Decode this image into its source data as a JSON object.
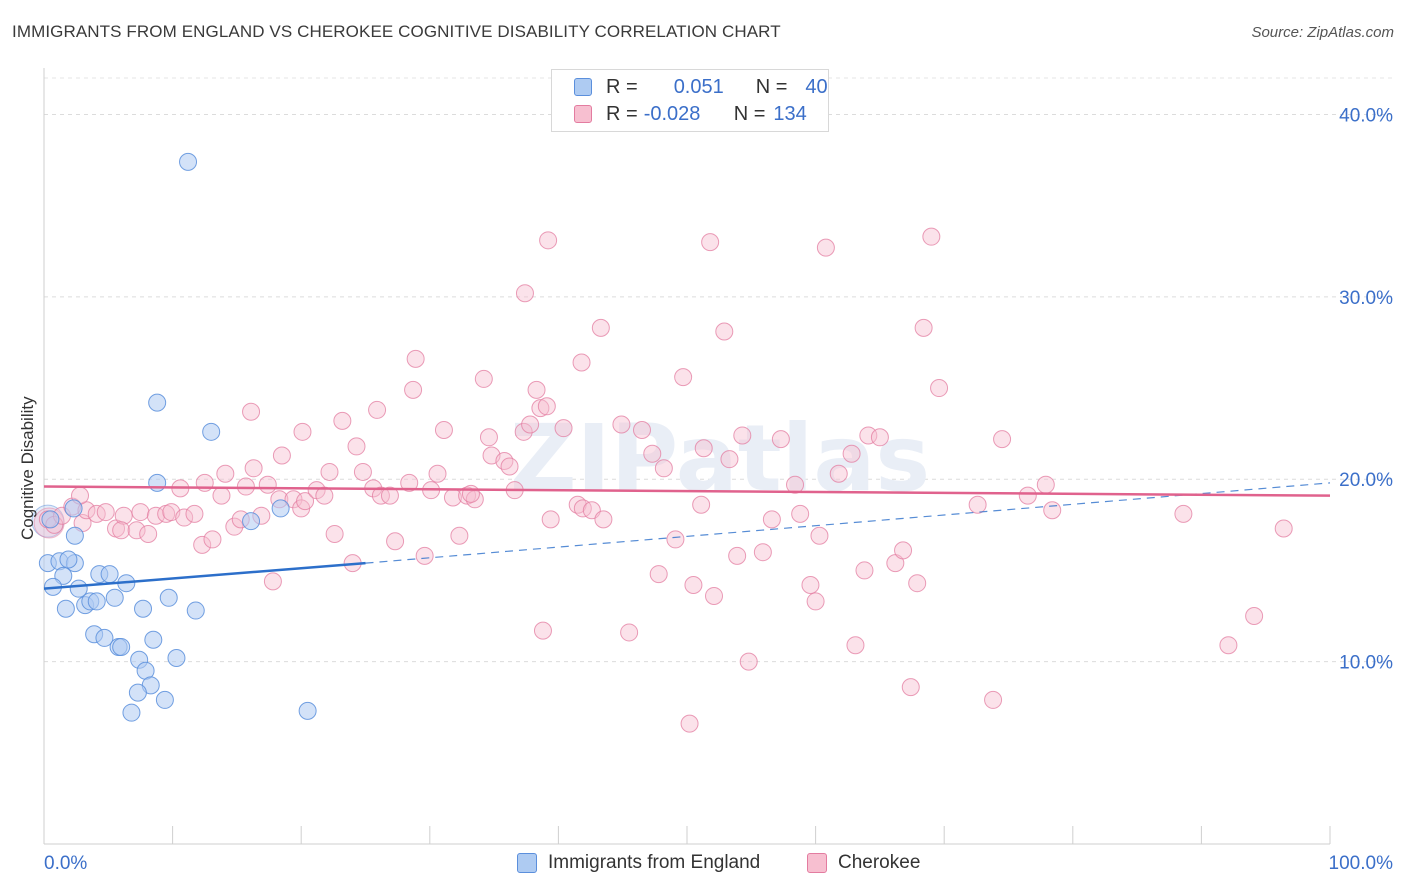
{
  "title": "IMMIGRANTS FROM ENGLAND VS CHEROKEE COGNITIVE DISABILITY CORRELATION CHART",
  "source": "Source: ZipAtlas.com",
  "watermark": "ZIPatlas",
  "legend": {
    "rows": [
      {
        "r_label": "R =",
        "r_value": "0.051",
        "n_label": "N =",
        "n_value": "40"
      },
      {
        "r_label": "R =",
        "r_value": "-0.028",
        "n_label": "N =",
        "n_value": "134"
      }
    ]
  },
  "bottom_legend": {
    "england": "Immigrants from England",
    "cherokee": "Cherokee"
  },
  "colors": {
    "england_fill": "#aecbf2",
    "england_stroke": "#5b8fdc",
    "england_line": "#2c6fca",
    "cherokee_fill": "#f7bfd0",
    "cherokee_stroke": "#e37ca0",
    "cherokee_line": "#e0628d",
    "axis_text": "#3b6fc9"
  },
  "chart_data": {
    "type": "scatter",
    "title": "IMMIGRANTS FROM ENGLAND VS CHEROKEE COGNITIVE DISABILITY CORRELATION CHART",
    "xlabel": "",
    "ylabel": "Cognitive Disability",
    "xlim": [
      0,
      100
    ],
    "ylim": [
      0,
      42
    ],
    "x_tick_labels": [
      "0.0%",
      "100.0%"
    ],
    "y_ticks": [
      10,
      20,
      30,
      40
    ],
    "y_tick_labels": [
      "10.0%",
      "20.0%",
      "30.0%",
      "40.0%"
    ],
    "grid": true,
    "series": [
      {
        "name": "Immigrants from England",
        "r": 0.051,
        "n": 40,
        "trend": {
          "x0": 0,
          "y0": 14.0,
          "x1": 25,
          "y1": 15.4,
          "dash_to_x": 100,
          "dash_to_y": 19.8
        },
        "points": [
          [
            11.2,
            37.4
          ],
          [
            0.5,
            17.8
          ],
          [
            2.3,
            18.4
          ],
          [
            8.8,
            19.8
          ],
          [
            13,
            22.6
          ],
          [
            8.8,
            24.2
          ],
          [
            0.3,
            15.4
          ],
          [
            1.2,
            15.5
          ],
          [
            2.4,
            15.4
          ],
          [
            1.9,
            15.6
          ],
          [
            1.5,
            14.7
          ],
          [
            0.7,
            14.1
          ],
          [
            2.7,
            14.0
          ],
          [
            4.3,
            14.8
          ],
          [
            5.1,
            14.8
          ],
          [
            6.4,
            14.3
          ],
          [
            3.2,
            13.1
          ],
          [
            3.6,
            13.3
          ],
          [
            4.1,
            13.3
          ],
          [
            5.5,
            13.5
          ],
          [
            9.7,
            13.5
          ],
          [
            1.7,
            12.9
          ],
          [
            7.7,
            12.9
          ],
          [
            11.8,
            12.8
          ],
          [
            3.9,
            11.5
          ],
          [
            4.7,
            11.3
          ],
          [
            5.8,
            10.8
          ],
          [
            8.5,
            11.2
          ],
          [
            6.0,
            10.8
          ],
          [
            7.4,
            10.1
          ],
          [
            10.3,
            10.2
          ],
          [
            7.9,
            9.5
          ],
          [
            8.3,
            8.7
          ],
          [
            7.3,
            8.3
          ],
          [
            9.4,
            7.9
          ],
          [
            6.8,
            7.2
          ],
          [
            20.5,
            7.3
          ],
          [
            2.4,
            16.9
          ],
          [
            18.4,
            18.4
          ],
          [
            16.1,
            17.7
          ]
        ]
      },
      {
        "name": "Cherokee",
        "r": -0.028,
        "n": 134,
        "trend": {
          "x0": 0,
          "y0": 19.6,
          "x1": 100,
          "y1": 19.1
        },
        "points": [
          [
            0.3,
            17.8
          ],
          [
            0.8,
            17.5
          ],
          [
            1.4,
            18.0
          ],
          [
            2.2,
            18.5
          ],
          [
            3.0,
            17.6
          ],
          [
            3.3,
            18.3
          ],
          [
            2.8,
            19.1
          ],
          [
            4.1,
            18.1
          ],
          [
            4.8,
            18.2
          ],
          [
            5.6,
            17.3
          ],
          [
            6.2,
            18.0
          ],
          [
            6.0,
            17.2
          ],
          [
            7.2,
            17.2
          ],
          [
            7.5,
            18.2
          ],
          [
            8.1,
            17.0
          ],
          [
            8.7,
            18.0
          ],
          [
            9.5,
            18.1
          ],
          [
            9.9,
            18.2
          ],
          [
            10.6,
            19.5
          ],
          [
            10.9,
            17.9
          ],
          [
            11.7,
            18.1
          ],
          [
            12.3,
            16.4
          ],
          [
            12.5,
            19.8
          ],
          [
            13.1,
            16.7
          ],
          [
            13.8,
            19.1
          ],
          [
            14.1,
            20.3
          ],
          [
            14.8,
            17.4
          ],
          [
            15.3,
            17.8
          ],
          [
            15.7,
            19.6
          ],
          [
            16.1,
            23.7
          ],
          [
            16.3,
            20.6
          ],
          [
            16.9,
            18.0
          ],
          [
            17.4,
            19.7
          ],
          [
            17.8,
            14.4
          ],
          [
            18.3,
            18.9
          ],
          [
            18.5,
            21.3
          ],
          [
            19.4,
            18.9
          ],
          [
            20.0,
            18.4
          ],
          [
            20.3,
            18.8
          ],
          [
            20.1,
            22.6
          ],
          [
            21.2,
            19.4
          ],
          [
            21.8,
            19.1
          ],
          [
            22.2,
            20.4
          ],
          [
            22.6,
            17.0
          ],
          [
            23.2,
            23.2
          ],
          [
            24.0,
            15.4
          ],
          [
            24.3,
            21.8
          ],
          [
            24.8,
            20.4
          ],
          [
            25.6,
            19.5
          ],
          [
            25.9,
            23.8
          ],
          [
            26.2,
            19.1
          ],
          [
            26.9,
            19.1
          ],
          [
            27.3,
            16.6
          ],
          [
            28.4,
            19.8
          ],
          [
            28.7,
            24.9
          ],
          [
            28.9,
            26.6
          ],
          [
            29.6,
            15.8
          ],
          [
            30.1,
            19.4
          ],
          [
            30.6,
            20.3
          ],
          [
            31.1,
            22.7
          ],
          [
            31.8,
            19.0
          ],
          [
            32.3,
            16.9
          ],
          [
            32.9,
            19.1
          ],
          [
            33.5,
            18.9
          ],
          [
            33.2,
            19.2
          ],
          [
            34.2,
            25.5
          ],
          [
            34.6,
            22.3
          ],
          [
            34.8,
            21.3
          ],
          [
            35.8,
            21.0
          ],
          [
            36.2,
            20.7
          ],
          [
            36.6,
            19.4
          ],
          [
            37.3,
            22.6
          ],
          [
            37.4,
            30.2
          ],
          [
            37.8,
            23.0
          ],
          [
            38.3,
            24.9
          ],
          [
            38.6,
            23.9
          ],
          [
            39.1,
            24.0
          ],
          [
            38.8,
            11.7
          ],
          [
            39.2,
            33.1
          ],
          [
            39.4,
            17.8
          ],
          [
            40.4,
            22.8
          ],
          [
            41.5,
            18.6
          ],
          [
            41.9,
            18.4
          ],
          [
            41.8,
            26.4
          ],
          [
            42.6,
            18.3
          ],
          [
            43.3,
            28.3
          ],
          [
            43.5,
            17.8
          ],
          [
            44.9,
            23.0
          ],
          [
            45.5,
            11.6
          ],
          [
            46.5,
            22.7
          ],
          [
            47.3,
            21.4
          ],
          [
            47.8,
            14.8
          ],
          [
            48.2,
            20.6
          ],
          [
            49.1,
            16.7
          ],
          [
            49.7,
            25.6
          ],
          [
            50.2,
            6.6
          ],
          [
            50.5,
            14.2
          ],
          [
            51.1,
            18.6
          ],
          [
            51.3,
            21.7
          ],
          [
            51.8,
            33.0
          ],
          [
            52.1,
            13.6
          ],
          [
            52.9,
            28.1
          ],
          [
            53.3,
            21.1
          ],
          [
            53.9,
            15.8
          ],
          [
            54.3,
            22.4
          ],
          [
            54.8,
            10.0
          ],
          [
            55.9,
            16.0
          ],
          [
            56.6,
            17.8
          ],
          [
            57.3,
            22.2
          ],
          [
            58.4,
            19.7
          ],
          [
            58.8,
            18.1
          ],
          [
            59.6,
            14.2
          ],
          [
            60.0,
            13.3
          ],
          [
            60.3,
            16.9
          ],
          [
            60.8,
            32.7
          ],
          [
            61.8,
            20.3
          ],
          [
            62.8,
            21.4
          ],
          [
            63.1,
            10.9
          ],
          [
            63.8,
            15.0
          ],
          [
            64.1,
            22.4
          ],
          [
            65.0,
            22.3
          ],
          [
            66.2,
            15.4
          ],
          [
            66.8,
            16.1
          ],
          [
            67.4,
            8.6
          ],
          [
            67.9,
            14.3
          ],
          [
            68.4,
            28.3
          ],
          [
            69.0,
            33.3
          ],
          [
            69.6,
            25.0
          ],
          [
            72.6,
            18.6
          ],
          [
            73.8,
            7.9
          ],
          [
            74.5,
            22.2
          ],
          [
            76.5,
            19.1
          ],
          [
            77.9,
            19.7
          ],
          [
            78.4,
            18.3
          ],
          [
            88.6,
            18.1
          ],
          [
            92.1,
            10.9
          ],
          [
            94.1,
            12.5
          ],
          [
            96.4,
            17.3
          ]
        ]
      }
    ]
  }
}
